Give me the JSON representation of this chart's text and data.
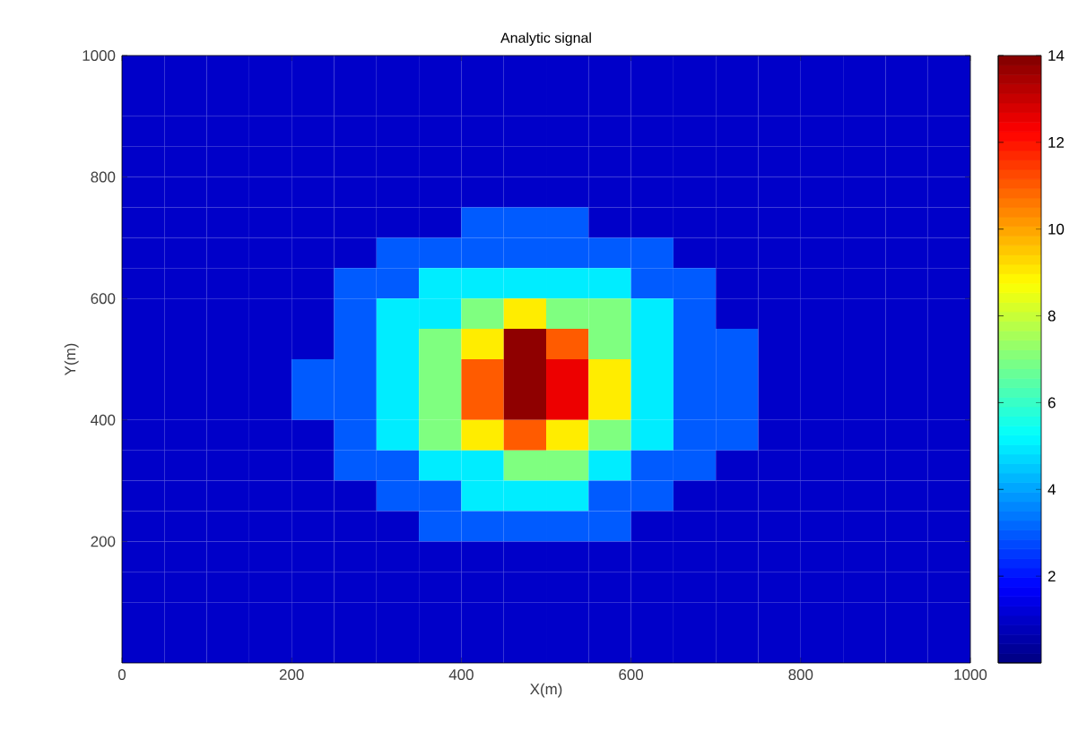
{
  "chart_data": {
    "type": "heatmap",
    "title": "Analytic signal",
    "xlabel": "X(m)",
    "ylabel": "Y(m)",
    "xlim": [
      0,
      1000
    ],
    "xticks": [
      0,
      200,
      400,
      600,
      800,
      1000
    ],
    "ylim": [
      0,
      1000
    ],
    "yticks": [
      200,
      400,
      600,
      800,
      1000
    ],
    "clim": [
      0,
      14
    ],
    "cticks": [
      2,
      4,
      6,
      8,
      10,
      12,
      14
    ],
    "x": [
      25,
      75,
      125,
      175,
      225,
      275,
      325,
      375,
      425,
      475,
      525,
      575,
      625,
      675,
      725,
      775,
      825,
      875,
      925,
      975
    ],
    "y": [
      975,
      925,
      875,
      825,
      775,
      725,
      675,
      625,
      575,
      525,
      475,
      425,
      375,
      325,
      275,
      225,
      175,
      125,
      75,
      25
    ],
    "cells": [
      [
        1,
        1,
        1,
        1,
        1,
        1,
        1,
        1,
        1,
        1,
        1,
        1,
        1,
        1,
        1,
        1,
        1,
        1,
        1,
        1
      ],
      [
        1,
        1,
        1,
        1,
        1,
        1,
        1,
        1,
        1,
        1,
        1,
        1,
        1,
        1,
        1,
        1,
        1,
        1,
        1,
        1
      ],
      [
        1,
        1,
        1,
        1,
        1,
        1,
        1,
        1,
        1,
        1,
        1,
        1,
        1,
        1,
        1,
        1,
        1,
        1,
        1,
        1
      ],
      [
        1,
        1,
        1,
        1,
        1,
        1,
        1,
        1,
        1,
        1,
        1,
        1,
        1,
        1,
        1,
        1,
        1,
        1,
        1,
        1
      ],
      [
        1,
        1,
        1,
        1,
        1,
        1,
        1,
        1,
        1,
        1,
        1,
        1,
        1,
        1,
        1,
        1,
        1,
        1,
        1,
        1
      ],
      [
        1,
        1,
        1,
        1,
        1,
        1,
        1,
        1,
        3,
        3,
        3,
        1,
        1,
        1,
        1,
        1,
        1,
        1,
        1,
        1
      ],
      [
        1,
        1,
        1,
        1,
        1,
        1,
        3,
        3,
        3,
        3,
        3,
        3,
        3,
        1,
        1,
        1,
        1,
        1,
        1,
        1
      ],
      [
        1,
        1,
        1,
        1,
        1,
        3,
        3,
        5,
        5,
        5,
        5,
        5,
        3,
        3,
        1,
        1,
        1,
        1,
        1,
        1
      ],
      [
        1,
        1,
        1,
        1,
        1,
        3,
        5,
        5,
        7,
        9,
        7,
        7,
        5,
        3,
        1,
        1,
        1,
        1,
        1,
        1
      ],
      [
        1,
        1,
        1,
        1,
        1,
        3,
        5,
        7,
        9,
        13.8,
        11,
        7,
        5,
        3,
        3,
        1,
        1,
        1,
        1,
        1
      ],
      [
        1,
        1,
        1,
        1,
        3,
        3,
        5,
        7,
        11,
        13.8,
        12.5,
        9,
        5,
        3,
        3,
        1,
        1,
        1,
        1,
        1
      ],
      [
        1,
        1,
        1,
        1,
        3,
        3,
        5,
        7,
        11,
        13.8,
        12.5,
        9,
        5,
        3,
        3,
        1,
        1,
        1,
        1,
        1
      ],
      [
        1,
        1,
        1,
        1,
        1,
        3,
        5,
        7,
        9,
        11,
        9,
        7,
        5,
        3,
        3,
        1,
        1,
        1,
        1,
        1
      ],
      [
        1,
        1,
        1,
        1,
        1,
        3,
        3,
        5,
        5,
        7,
        7,
        5,
        3,
        3,
        1,
        1,
        1,
        1,
        1,
        1
      ],
      [
        1,
        1,
        1,
        1,
        1,
        1,
        3,
        3,
        5,
        5,
        5,
        3,
        3,
        1,
        1,
        1,
        1,
        1,
        1,
        1
      ],
      [
        1,
        1,
        1,
        1,
        1,
        1,
        1,
        3,
        3,
        3,
        3,
        3,
        1,
        1,
        1,
        1,
        1,
        1,
        1,
        1
      ],
      [
        1,
        1,
        1,
        1,
        1,
        1,
        1,
        1,
        1,
        1,
        1,
        1,
        1,
        1,
        1,
        1,
        1,
        1,
        1,
        1
      ],
      [
        1,
        1,
        1,
        1,
        1,
        1,
        1,
        1,
        1,
        1,
        1,
        1,
        1,
        1,
        1,
        1,
        1,
        1,
        1,
        1
      ],
      [
        1,
        1,
        1,
        1,
        1,
        1,
        1,
        1,
        1,
        1,
        1,
        1,
        1,
        1,
        1,
        1,
        1,
        1,
        1,
        1
      ],
      [
        1,
        1,
        1,
        1,
        1,
        1,
        1,
        1,
        1,
        1,
        1,
        1,
        1,
        1,
        1,
        1,
        1,
        1,
        1,
        1
      ]
    ]
  }
}
